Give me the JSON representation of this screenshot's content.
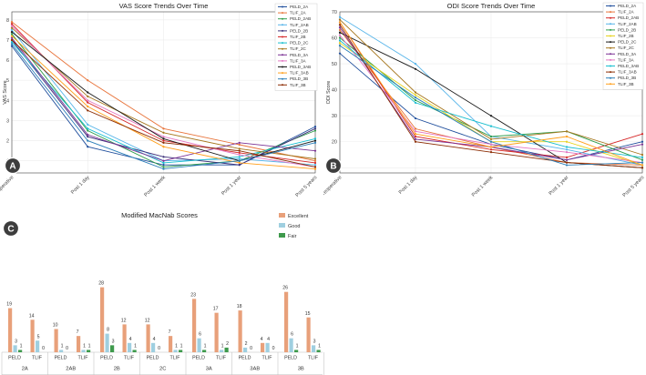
{
  "chart_data": [
    {
      "type": "line",
      "panel_label": "A",
      "title": "VAS Score Trends Over Time",
      "xlabel": "",
      "ylabel": "VAS Score",
      "categories": [
        "Preoperative",
        "Post 1 day",
        "Post 1 week",
        "Post 1 year",
        "Post 5 years"
      ],
      "ylim": [
        0.4,
        8.4
      ],
      "yticks": [
        1,
        2,
        3,
        4,
        5,
        6,
        7,
        8
      ],
      "legend_position": "top-right",
      "series": [
        {
          "name": "PELD_2A",
          "color": "#1f4e9c",
          "values": [
            6.7,
            1.7,
            0.8,
            0.8,
            2.7
          ]
        },
        {
          "name": "TLIF_2A",
          "color": "#e8743b",
          "values": [
            7.9,
            5.0,
            2.6,
            1.8,
            1.0
          ]
        },
        {
          "name": "PELD_2AB",
          "color": "#2e9c4a",
          "values": [
            7.3,
            2.5,
            0.7,
            1.0,
            2.5
          ]
        },
        {
          "name": "TLIF_2AB",
          "color": "#56b4e9",
          "values": [
            7.5,
            2.8,
            1.0,
            1.1,
            0.8
          ]
        },
        {
          "name": "PELD_2B",
          "color": "#3b2f7a",
          "values": [
            7.0,
            2.2,
            1.2,
            0.8,
            2.6
          ]
        },
        {
          "name": "TLIF_2B",
          "color": "#d62728",
          "values": [
            7.8,
            3.9,
            2.0,
            1.4,
            0.9
          ]
        },
        {
          "name": "PELD_2C",
          "color": "#17becf",
          "values": [
            6.9,
            2.6,
            0.9,
            1.2,
            2.1
          ]
        },
        {
          "name": "TLIF_2C",
          "color": "#a6761d",
          "values": [
            7.6,
            4.2,
            2.4,
            1.6,
            1.1
          ]
        },
        {
          "name": "PELD_3A",
          "color": "#7b3294",
          "values": [
            7.1,
            2.3,
            1.0,
            1.9,
            1.5
          ]
        },
        {
          "name": "TLIF_3A",
          "color": "#e377c2",
          "values": [
            7.7,
            4.0,
            2.2,
            1.3,
            0.7
          ]
        },
        {
          "name": "PELD_3AB",
          "color": "#1a1a1a",
          "values": [
            7.4,
            4.4,
            2.1,
            1.0,
            2.0
          ]
        },
        {
          "name": "TLIF_3AB",
          "color": "#ff9f1c",
          "values": [
            7.2,
            3.7,
            1.7,
            0.9,
            0.6
          ]
        },
        {
          "name": "PELD_3B",
          "color": "#2c7fb8",
          "values": [
            6.8,
            2.0,
            0.6,
            1.0,
            1.9
          ]
        },
        {
          "name": "TLIF_3B",
          "color": "#8c2d04",
          "values": [
            7.0,
            3.5,
            1.9,
            1.5,
            0.7
          ]
        }
      ]
    },
    {
      "type": "line",
      "panel_label": "B",
      "title": "ODI Score Trends Over Time",
      "xlabel": "",
      "ylabel": "ODI Score",
      "categories": [
        "Preoperative",
        "Post 1 day",
        "Post 1 week",
        "Post 1 year",
        "Post 5 years"
      ],
      "ylim": [
        8,
        70
      ],
      "yticks": [
        10,
        20,
        30,
        40,
        50,
        60,
        70
      ],
      "legend_position": "top-right",
      "series": [
        {
          "name": "PELD_2A",
          "color": "#1f4e9c",
          "values": [
            54,
            29,
            19,
            13,
            20
          ]
        },
        {
          "name": "TLIF_2A",
          "color": "#e8743b",
          "values": [
            63,
            25,
            18,
            12,
            11
          ]
        },
        {
          "name": "PELD_2AB",
          "color": "#d62728",
          "values": [
            66,
            22,
            17,
            14,
            23
          ]
        },
        {
          "name": "TLIF_2AB",
          "color": "#56b4e9",
          "values": [
            68,
            50,
            22,
            17,
            11
          ]
        },
        {
          "name": "PELD_2B",
          "color": "#2e9c4a",
          "values": [
            60,
            36,
            22,
            24,
            13
          ]
        },
        {
          "name": "TLIF_2B",
          "color": "#e6d21e",
          "values": [
            58,
            38,
            20,
            20,
            11
          ]
        },
        {
          "name": "PELD_2C",
          "color": "#1a1a1a",
          "values": [
            62,
            48,
            30,
            12,
            10
          ]
        },
        {
          "name": "TLIF_2C",
          "color": "#a6761d",
          "values": [
            67,
            39,
            21,
            24,
            15
          ]
        },
        {
          "name": "PELD_3A",
          "color": "#7b3294",
          "values": [
            64,
            21,
            18,
            13,
            19
          ]
        },
        {
          "name": "TLIF_3A",
          "color": "#e377c2",
          "values": [
            61,
            24,
            19,
            16,
            12
          ]
        },
        {
          "name": "PELD_3AB",
          "color": "#17becf",
          "values": [
            59,
            35,
            26,
            18,
            14
          ]
        },
        {
          "name": "TLIF_3AB",
          "color": "#8c2d04",
          "values": [
            65,
            20,
            16,
            12,
            10
          ]
        },
        {
          "name": "PELD_3B",
          "color": "#2c7fb8",
          "values": [
            57,
            37,
            20,
            11,
            12
          ]
        },
        {
          "name": "TLIF_3B",
          "color": "#ff9f1c",
          "values": [
            66,
            23,
            18,
            22,
            11
          ]
        }
      ]
    },
    {
      "type": "bar",
      "panel_label": "C",
      "title": "Modified MacNab Scores",
      "xlabel": "",
      "ylabel": "",
      "legend_position": "top-right",
      "series_names": [
        "Excellent",
        "Good",
        "Fair"
      ],
      "series_colors": [
        "#e8a07a",
        "#9fcfe0",
        "#3e9a4c"
      ],
      "groups": [
        {
          "name": "2A",
          "bars": [
            {
              "label": "PELD",
              "values": [
                19,
                3,
                1
              ]
            },
            {
              "label": "TLIF",
              "values": [
                14,
                5,
                0
              ]
            }
          ]
        },
        {
          "name": "2AB",
          "bars": [
            {
              "label": "PELD",
              "values": [
                10,
                1,
                0
              ]
            },
            {
              "label": "TLIF",
              "values": [
                7,
                1,
                1
              ]
            }
          ]
        },
        {
          "name": "2B",
          "bars": [
            {
              "label": "PELD",
              "values": [
                28,
                8,
                3
              ]
            },
            {
              "label": "TLIF",
              "values": [
                12,
                4,
                1
              ]
            }
          ]
        },
        {
          "name": "2C",
          "bars": [
            {
              "label": "PELD",
              "values": [
                12,
                4,
                0
              ]
            },
            {
              "label": "TLIF",
              "values": [
                7,
                1,
                1
              ]
            }
          ]
        },
        {
          "name": "3A",
          "bars": [
            {
              "label": "PELD",
              "values": [
                23,
                6,
                1
              ]
            },
            {
              "label": "TLIF",
              "values": [
                17,
                1,
                2
              ]
            }
          ]
        },
        {
          "name": "3AB",
          "bars": [
            {
              "label": "PELD",
              "values": [
                18,
                2,
                0
              ]
            },
            {
              "label": "TLIF",
              "values": [
                4,
                4,
                0
              ]
            }
          ]
        },
        {
          "name": "3B",
          "bars": [
            {
              "label": "PELD",
              "values": [
                26,
                6,
                1
              ]
            },
            {
              "label": "TLIF",
              "values": [
                15,
                3,
                1
              ]
            }
          ]
        }
      ]
    }
  ]
}
